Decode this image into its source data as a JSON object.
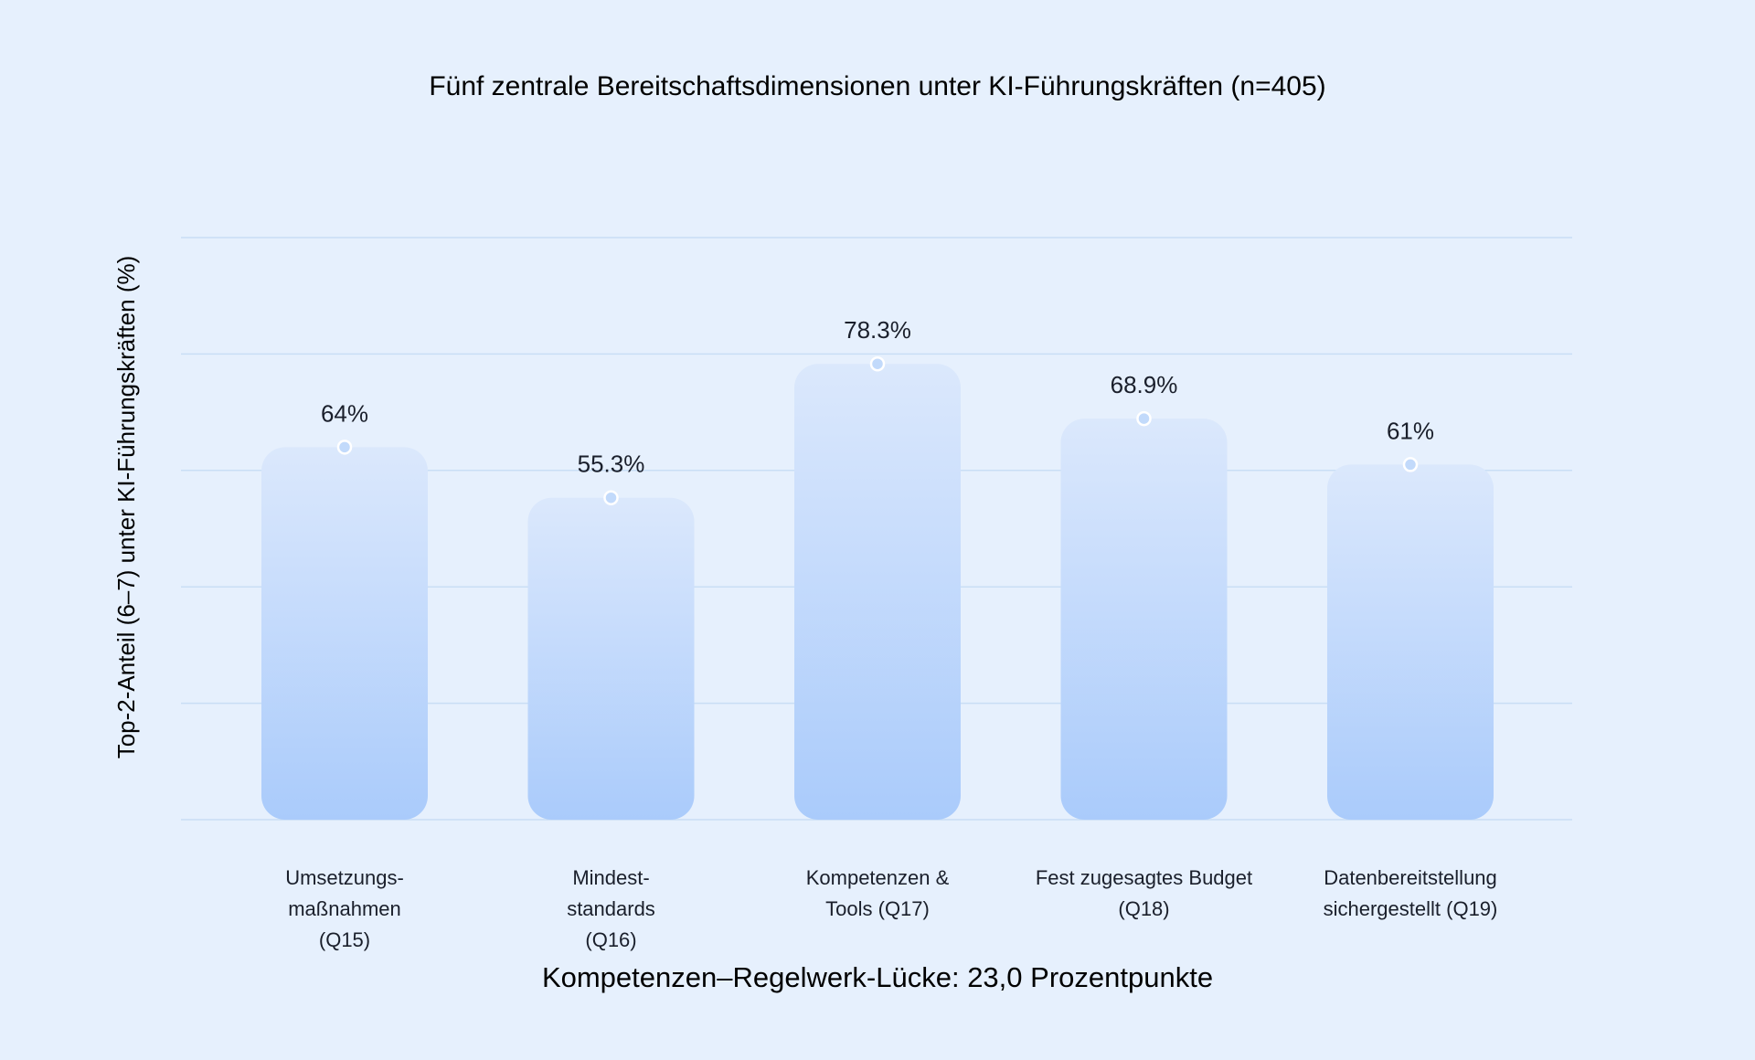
{
  "chart_data": {
    "type": "bar",
    "title": "Fünf zentrale Bereitschaftsdimensionen unter KI-Führungskräften (n=405)",
    "subtitle": "Kompetenzen–Regelwerk-Lücke: 23,0 Prozentpunkte",
    "ylabel": "Top-2-Anteil (6–7) unter KI-Führungskräften (%)",
    "xlabel": "",
    "ylim": [
      0,
      100
    ],
    "grid": true,
    "categories": [
      [
        "Umsetzungs-",
        "maßnahmen",
        "(Q15)"
      ],
      [
        "Mindest-",
        "standards",
        "(Q16)"
      ],
      [
        "Kompetenzen &",
        "Tools (Q17)"
      ],
      [
        "Fest zugesagtes Budget",
        "(Q18)"
      ],
      [
        "Datenbereitstellung",
        "sichergestellt (Q19)"
      ]
    ],
    "values": [
      64,
      55.3,
      78.3,
      68.9,
      61
    ],
    "value_labels": [
      "64%",
      "55.3%",
      "78.3%",
      "68.9%",
      "61%"
    ],
    "colors": {
      "background": "#e6f0fd",
      "bar_top": "#dbe8fc",
      "bar_bottom": "#aacbfb",
      "grid": "#c9def5",
      "marker": "#c2dafb",
      "text": "#1a1f2b"
    }
  }
}
